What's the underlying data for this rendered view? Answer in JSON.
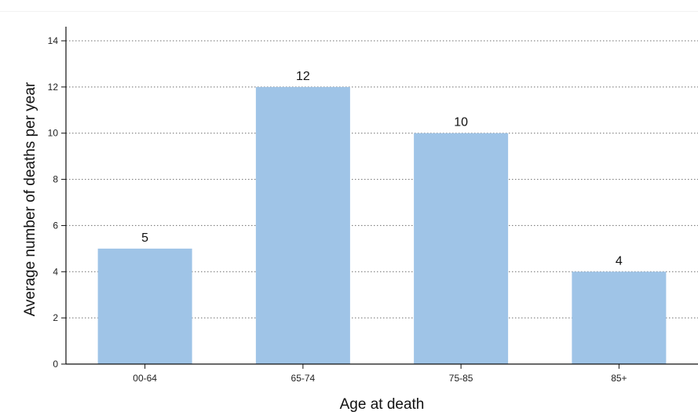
{
  "chart_data": {
    "type": "bar",
    "categories": [
      "00-64",
      "65-74",
      "75-85",
      "85+"
    ],
    "values": [
      5,
      12,
      10,
      4
    ],
    "data_labels": [
      "5",
      "12",
      "10",
      "4"
    ],
    "title": "",
    "xlabel": "Age at death",
    "ylabel": "Average number of deaths per year",
    "ylim": [
      0,
      14
    ],
    "yticks": [
      0,
      2,
      4,
      6,
      8,
      10,
      12,
      14
    ],
    "ytick_labels": [
      "0",
      "2",
      "4",
      "6",
      "8",
      "10",
      "12",
      "14"
    ],
    "grid": true,
    "grid_style": "dotted",
    "bar_color": "#9fc4e7"
  }
}
